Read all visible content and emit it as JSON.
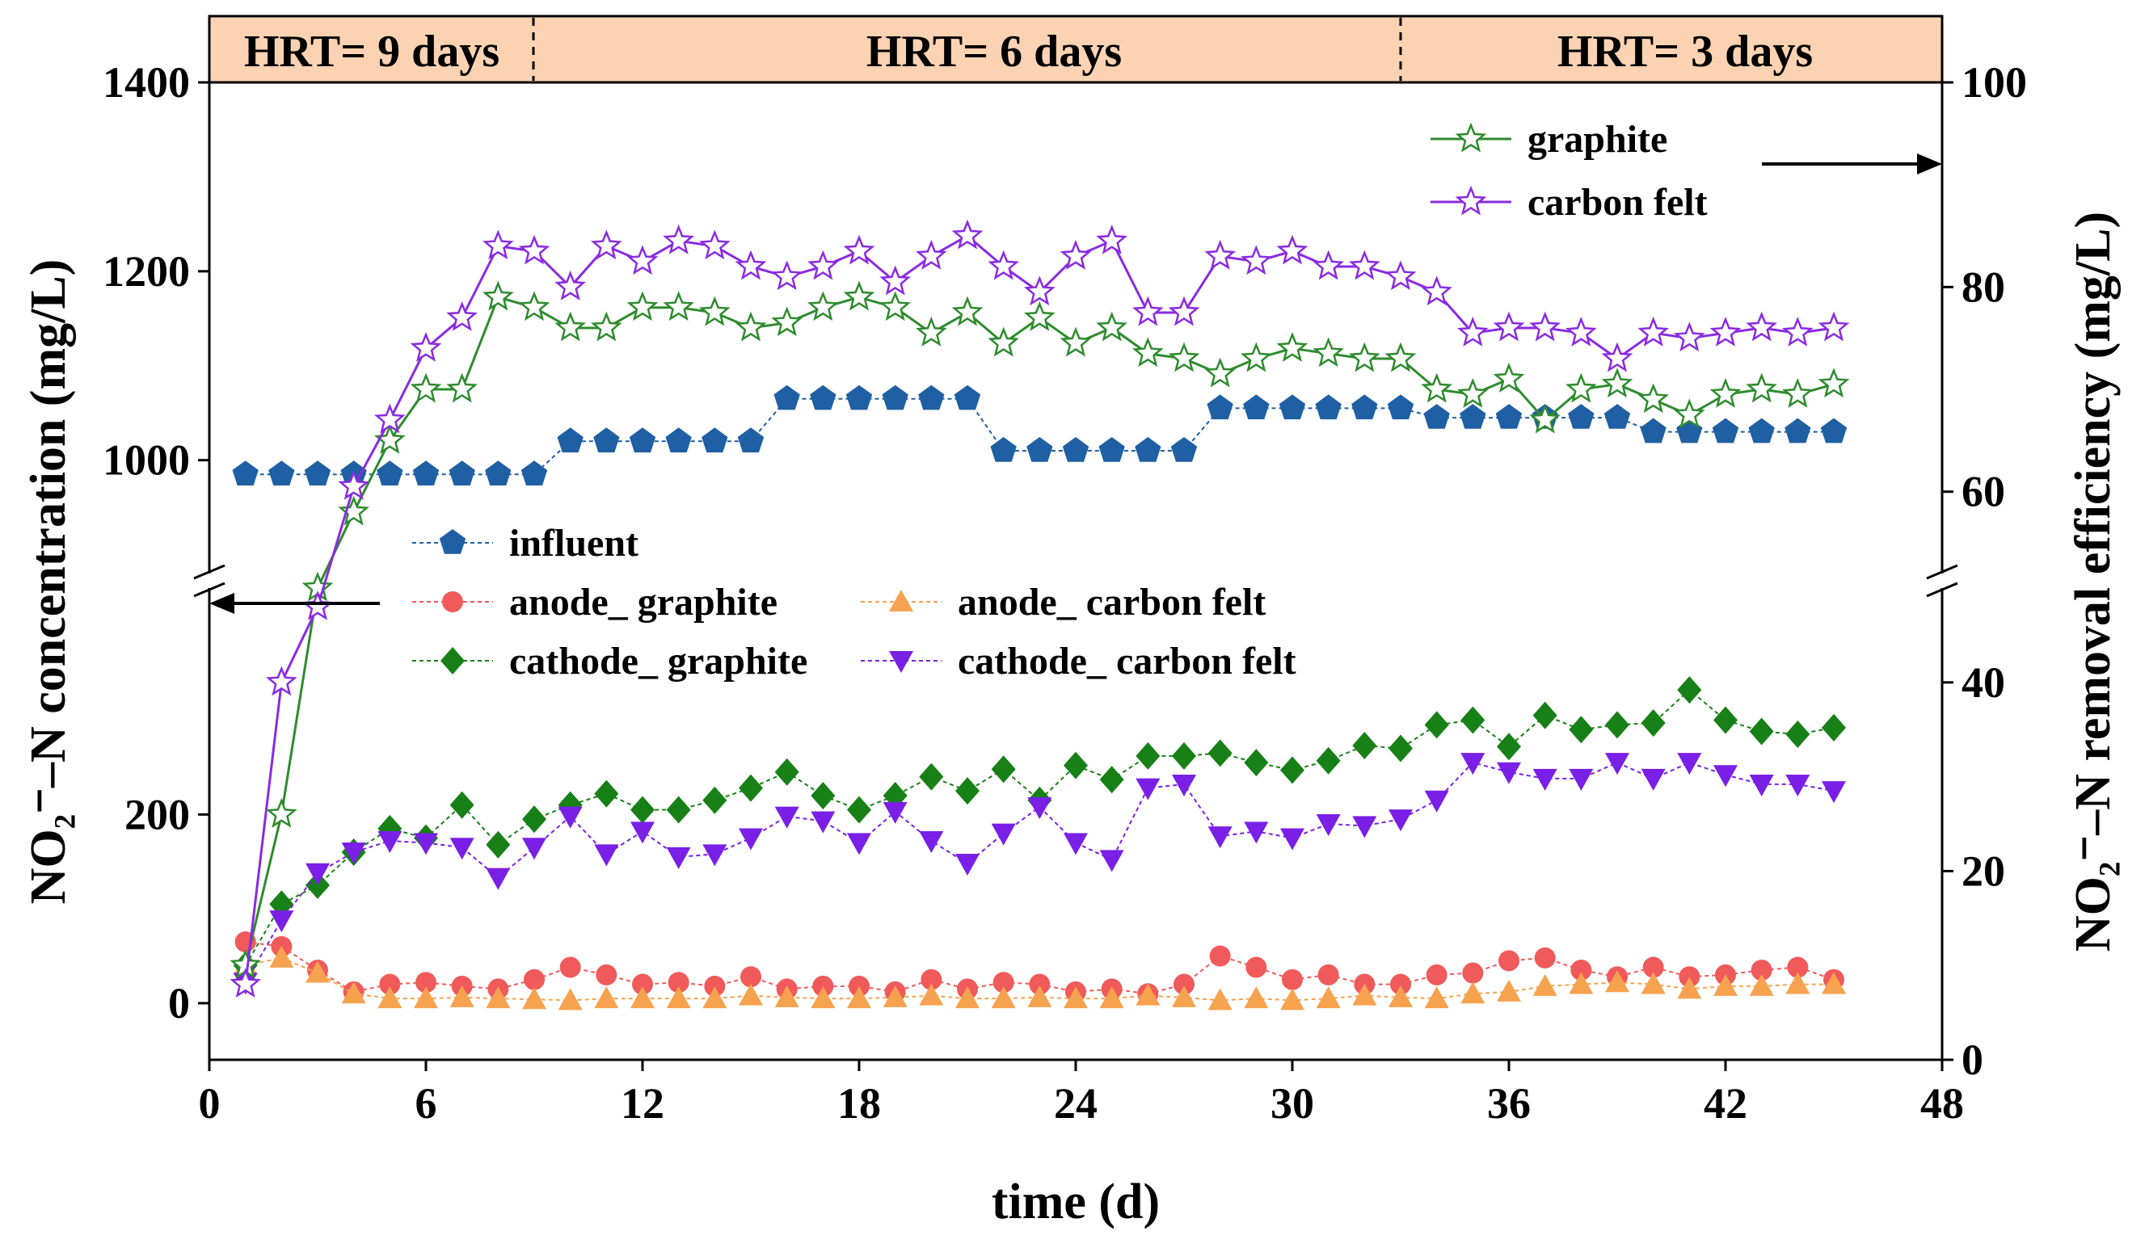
{
  "chart_data": {
    "type": "line",
    "xlabel": "time (d)",
    "ylabel_left": "NO₂⁻–N concentration (mg/L)",
    "ylabel_right": "NO₂⁻–N removal efficiency (mg/L)",
    "xlim": [
      0,
      48
    ],
    "x_ticks": [
      "0",
      "6",
      "12",
      "18",
      "24",
      "30",
      "36",
      "42",
      "48"
    ],
    "left_axis": {
      "upper_range": [
        880,
        1400
      ],
      "upper_ticks": [
        "1000",
        "1200",
        "1400"
      ],
      "lower_range": [
        -60,
        440
      ],
      "lower_ticks": [
        "0",
        "200"
      ]
    },
    "right_axis": {
      "lower_range": [
        0,
        50
      ],
      "lower_ticks": [
        "0",
        "20",
        "40"
      ],
      "upper_range": [
        52,
        100
      ],
      "upper_ticks": [
        "60",
        "80",
        "100"
      ]
    },
    "hrt_periods": [
      {
        "label": "HRT= 9 days",
        "start": 0,
        "end": 9
      },
      {
        "label": "HRT= 6 days",
        "start": 9,
        "end": 33
      },
      {
        "label": "HRT= 3 days",
        "start": 33,
        "end": 48
      }
    ],
    "x": [
      1,
      2,
      3,
      4,
      5,
      6,
      7,
      8,
      9,
      10,
      11,
      12,
      13,
      14,
      15,
      16,
      17,
      18,
      19,
      20,
      21,
      22,
      23,
      24,
      25,
      26,
      27,
      28,
      29,
      30,
      31,
      32,
      33,
      34,
      35,
      36,
      37,
      38,
      39,
      40,
      41,
      42,
      43,
      44,
      45
    ],
    "series": [
      {
        "name": "influent",
        "axis": "left",
        "color": "#1f5fa3",
        "marker": "pentagon",
        "values": [
          985,
          985,
          985,
          985,
          985,
          985,
          985,
          985,
          985,
          1020,
          1020,
          1020,
          1020,
          1020,
          1020,
          1065,
          1065,
          1065,
          1065,
          1065,
          1065,
          1010,
          1010,
          1010,
          1010,
          1010,
          1010,
          1055,
          1055,
          1055,
          1055,
          1055,
          1055,
          1045,
          1045,
          1045,
          1045,
          1045,
          1045,
          1030,
          1030,
          1030,
          1030,
          1030,
          1030
        ]
      },
      {
        "name": "anode_ graphite",
        "axis": "left",
        "color": "#f05a5a",
        "marker": "circle",
        "values": [
          65,
          60,
          35,
          12,
          20,
          22,
          18,
          15,
          25,
          38,
          30,
          20,
          22,
          18,
          28,
          15,
          18,
          18,
          12,
          25,
          15,
          22,
          20,
          12,
          15,
          10,
          20,
          50,
          38,
          25,
          30,
          20,
          20,
          30,
          32,
          45,
          48,
          35,
          28,
          38,
          28,
          30,
          35,
          38,
          25
        ]
      },
      {
        "name": "anode_ carbon felt",
        "axis": "left",
        "color": "#f7a24f",
        "marker": "triangle-up",
        "values": [
          40,
          48,
          32,
          10,
          5,
          5,
          6,
          5,
          4,
          3,
          5,
          5,
          5,
          5,
          8,
          6,
          5,
          5,
          6,
          8,
          5,
          5,
          6,
          5,
          5,
          8,
          6,
          3,
          5,
          3,
          5,
          8,
          6,
          5,
          10,
          12,
          18,
          20,
          22,
          20,
          15,
          18,
          18,
          20,
          20
        ]
      },
      {
        "name": "cathode_ graphite",
        "axis": "left",
        "color": "#178017",
        "marker": "diamond",
        "values": [
          40,
          105,
          125,
          160,
          185,
          175,
          210,
          168,
          195,
          210,
          222,
          205,
          205,
          215,
          228,
          245,
          220,
          205,
          220,
          240,
          225,
          248,
          215,
          252,
          237,
          262,
          262,
          265,
          255,
          247,
          257,
          273,
          270,
          295,
          300,
          272,
          305,
          290,
          295,
          297,
          332,
          300,
          288,
          285,
          292
        ]
      },
      {
        "name": "cathode_ carbon felt",
        "axis": "left",
        "color": "#7a1fe6",
        "marker": "triangle-down",
        "values": [
          22,
          88,
          138,
          160,
          172,
          170,
          165,
          133,
          165,
          198,
          158,
          182,
          155,
          158,
          175,
          198,
          193,
          170,
          203,
          172,
          148,
          180,
          208,
          170,
          152,
          228,
          232,
          177,
          182,
          175,
          190,
          188,
          195,
          215,
          255,
          245,
          238,
          238,
          255,
          238,
          255,
          242,
          232,
          232,
          225
        ]
      },
      {
        "name": "graphite",
        "axis": "right",
        "color": "#2e8b2e",
        "marker": "star-open",
        "values": [
          10,
          26,
          50,
          58,
          65,
          70,
          70,
          79,
          78,
          76,
          76,
          78,
          78,
          77.5,
          76,
          76.5,
          78,
          79,
          78,
          75.5,
          77.5,
          74.5,
          77,
          74.5,
          76,
          73.5,
          73,
          71.5,
          73,
          74,
          73.5,
          73,
          73,
          70,
          69.5,
          71,
          67,
          70,
          70.5,
          69,
          67.5,
          69.5,
          70,
          69.5,
          70.5
        ]
      },
      {
        "name": "carbon felt",
        "axis": "right",
        "color": "#8a2be2",
        "marker": "star-open",
        "values": [
          8,
          40,
          48,
          60.5,
          67,
          74,
          77,
          84,
          83.5,
          80,
          84,
          82.5,
          84.5,
          84,
          82,
          81,
          82,
          83.5,
          80.5,
          83,
          85,
          82,
          79.5,
          83,
          84.5,
          77.5,
          77.5,
          83,
          82.5,
          83.5,
          82,
          82,
          81,
          79.5,
          75.5,
          76,
          76,
          75.5,
          73,
          75.5,
          75,
          75.5,
          76,
          75.5,
          76
        ]
      }
    ],
    "legend_upper": [
      "graphite",
      "carbon felt"
    ],
    "legend_lower": [
      [
        "influent"
      ],
      [
        "anode_ graphite",
        "anode_ carbon felt"
      ],
      [
        "cathode_ graphite",
        "cathode_ carbon felt"
      ]
    ]
  }
}
